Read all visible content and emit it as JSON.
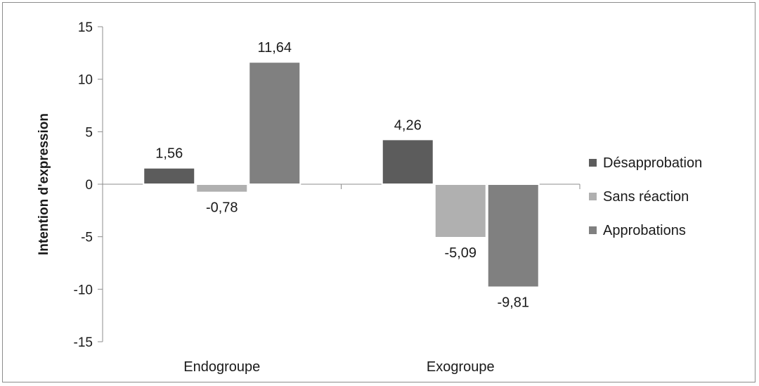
{
  "chart_data": {
    "type": "bar",
    "title": "",
    "xlabel": "",
    "ylabel": "Intention d'expression",
    "ylim": [
      -15,
      15
    ],
    "yticks": [
      15,
      10,
      5,
      0,
      -5,
      -10,
      -15
    ],
    "ytick_labels": [
      "15",
      "10",
      "5",
      "0",
      "-5",
      "-10",
      "-15"
    ],
    "categories": [
      "Endogroupe",
      "Exogroupe"
    ],
    "series": [
      {
        "name": "Désapprobation",
        "values": [
          1.56,
          4.26
        ],
        "labels": [
          "1,56",
          "4,26"
        ],
        "color": "#5c5c5c"
      },
      {
        "name": "Sans réaction",
        "values": [
          -0.78,
          -5.09
        ],
        "labels": [
          "-0,78",
          "-5,09"
        ],
        "color": "#b0b0b0"
      },
      {
        "name": "Approbations",
        "values": [
          11.64,
          -9.81
        ],
        "labels": [
          "11,64",
          "-9,81"
        ],
        "color": "#808080"
      }
    ],
    "legend_position": "right",
    "grid": false
  }
}
